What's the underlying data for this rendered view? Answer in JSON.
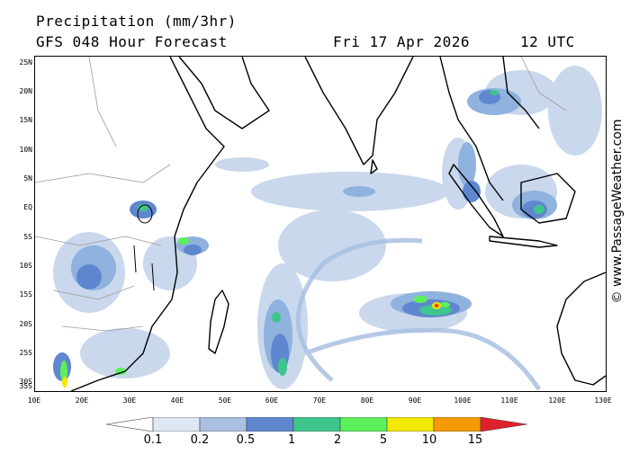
{
  "header": {
    "title_line1": "Precipitation (mm/3hr)",
    "title_line2": "GFS 048 Hour Forecast",
    "date": "Fri 17 Apr 2026",
    "time": "12 UTC"
  },
  "axes": {
    "lat_labels": [
      "25N",
      "20N",
      "15N",
      "10N",
      "5N",
      "EQ",
      "5S",
      "10S",
      "15S",
      "20S",
      "25S",
      "30S",
      "35S"
    ],
    "lon_labels": [
      "10E",
      "20E",
      "30E",
      "40E",
      "50E",
      "60E",
      "70E",
      "80E",
      "90E",
      "100E",
      "110E",
      "120E",
      "130E"
    ]
  },
  "map": {
    "region": "Indian Ocean",
    "lat_range": [
      "35S",
      "25N"
    ],
    "lon_range": [
      "10E",
      "130E"
    ],
    "colors": {
      "land": "#ffffff",
      "coast": "#000000",
      "borders": "#9a9a9a",
      "precip_light": "#c4d4ea",
      "precip_mid": "#8fb2de",
      "precip_blue": "#5f87cf",
      "precip_teal": "#3fc68c",
      "precip_green": "#5cf05a",
      "precip_yellow": "#f2e800",
      "precip_orange": "#f59a00",
      "precip_red": "#e0202a"
    }
  },
  "legend": {
    "labels": [
      "0.1",
      "0.2",
      "0.5",
      "1",
      "2",
      "5",
      "10",
      "15"
    ],
    "colors": [
      "#ffffff",
      "#dfe7f4",
      "#a9c0e2",
      "#5f87cf",
      "#3fc68c",
      "#5cf05a",
      "#f2e800",
      "#f59a00",
      "#e0202a"
    ]
  },
  "credit": "© www.PassageWeather.com"
}
